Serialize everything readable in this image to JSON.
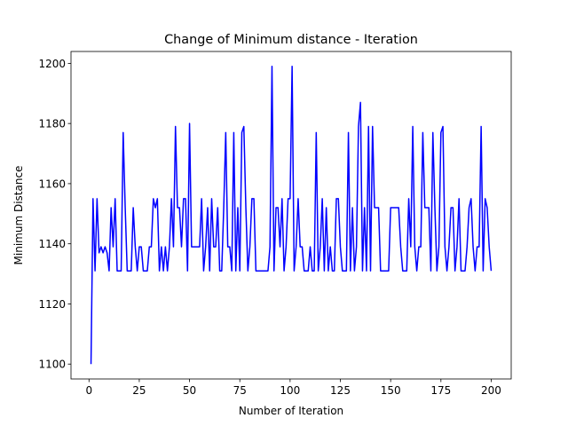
{
  "chart_data": {
    "type": "line",
    "title": "Change of Minimum distance - Iteration",
    "xlabel": "Number of Iteration",
    "ylabel": "Minimum Distance",
    "color": "#0000ff",
    "x": [
      1,
      2,
      3,
      4,
      5,
      6,
      7,
      8,
      9,
      10,
      11,
      12,
      13,
      14,
      15,
      16,
      17,
      18,
      19,
      20,
      21,
      22,
      23,
      24,
      25,
      26,
      27,
      28,
      29,
      30,
      31,
      32,
      33,
      34,
      35,
      36,
      37,
      38,
      39,
      40,
      41,
      42,
      43,
      44,
      45,
      46,
      47,
      48,
      49,
      50,
      51,
      52,
      53,
      54,
      55,
      56,
      57,
      58,
      59,
      60,
      61,
      62,
      63,
      64,
      65,
      66,
      67,
      68,
      69,
      70,
      71,
      72,
      73,
      74,
      75,
      76,
      77,
      78,
      79,
      80,
      81,
      82,
      83,
      84,
      85,
      86,
      87,
      88,
      89,
      90,
      91,
      92,
      93,
      94,
      95,
      96,
      97,
      98,
      99,
      100,
      101,
      102,
      103,
      104,
      105,
      106,
      107,
      108,
      109,
      110,
      111,
      112,
      113,
      114,
      115,
      116,
      117,
      118,
      119,
      120,
      121,
      122,
      123,
      124,
      125,
      126,
      127,
      128,
      129,
      130,
      131,
      132,
      133,
      134,
      135,
      136,
      137,
      138,
      139,
      140,
      141,
      142,
      143,
      144,
      145,
      146,
      147,
      148,
      149,
      150,
      151,
      152,
      153,
      154,
      155,
      156,
      157,
      158,
      159,
      160,
      161,
      162,
      163,
      164,
      165,
      166,
      167,
      168,
      169,
      170,
      171,
      172,
      173,
      174,
      175,
      176,
      177,
      178,
      179,
      180,
      181,
      182,
      183,
      184,
      185,
      186,
      187,
      188,
      189,
      190,
      191,
      192,
      193,
      194,
      195,
      196,
      197,
      198,
      199,
      200
    ],
    "values": [
      1100,
      1155,
      1131,
      1155,
      1137,
      1139,
      1137,
      1139,
      1137,
      1131,
      1152,
      1139,
      1155,
      1131,
      1131,
      1131,
      1177,
      1152,
      1131,
      1131,
      1131,
      1152,
      1139,
      1131,
      1139,
      1139,
      1131,
      1131,
      1131,
      1139,
      1139,
      1155,
      1152,
      1155,
      1131,
      1139,
      1131,
      1139,
      1131,
      1139,
      1155,
      1139,
      1179,
      1152,
      1152,
      1139,
      1155,
      1155,
      1131,
      1180,
      1139,
      1139,
      1139,
      1139,
      1139,
      1155,
      1131,
      1139,
      1152,
      1131,
      1155,
      1139,
      1139,
      1152,
      1131,
      1131,
      1152,
      1177,
      1139,
      1139,
      1131,
      1177,
      1131,
      1152,
      1131,
      1177,
      1179,
      1152,
      1131,
      1139,
      1155,
      1155,
      1131,
      1131,
      1131,
      1131,
      1131,
      1131,
      1131,
      1139,
      1199,
      1131,
      1152,
      1152,
      1139,
      1155,
      1131,
      1139,
      1155,
      1155,
      1199,
      1131,
      1139,
      1155,
      1139,
      1139,
      1131,
      1131,
      1131,
      1139,
      1131,
      1131,
      1177,
      1131,
      1139,
      1155,
      1131,
      1152,
      1131,
      1139,
      1131,
      1131,
      1155,
      1155,
      1139,
      1131,
      1131,
      1131,
      1177,
      1131,
      1152,
      1131,
      1139,
      1179,
      1187,
      1131,
      1152,
      1131,
      1179,
      1131,
      1179,
      1152,
      1152,
      1152,
      1131,
      1131,
      1131,
      1131,
      1131,
      1152,
      1152,
      1152,
      1152,
      1152,
      1139,
      1131,
      1131,
      1131,
      1155,
      1139,
      1179,
      1139,
      1131,
      1139,
      1139,
      1177,
      1152,
      1152,
      1152,
      1131,
      1177,
      1152,
      1131,
      1139,
      1177,
      1179,
      1139,
      1131,
      1139,
      1152,
      1152,
      1131,
      1139,
      1155,
      1131,
      1131,
      1131,
      1139,
      1152,
      1155,
      1139,
      1131,
      1139,
      1139,
      1179,
      1131,
      1155,
      1152,
      1139,
      1131
    ],
    "xlim": [
      -8.95,
      209.95
    ],
    "xticks": [
      0,
      25,
      50,
      75,
      100,
      125,
      150,
      175,
      200
    ],
    "ylim": [
      1095.05,
      1203.95
    ],
    "yticks": [
      1100,
      1120,
      1140,
      1160,
      1180,
      1200
    ]
  }
}
